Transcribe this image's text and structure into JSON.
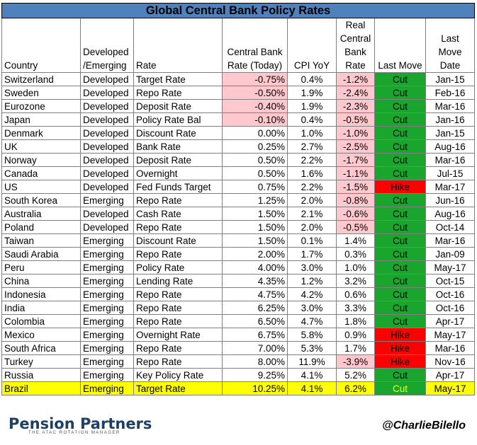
{
  "title": "Global Central Bank Policy Rates",
  "headers": {
    "country": "Country",
    "dev": "Developed /Emerging",
    "rate": "Rate",
    "cb": "Central Bank Rate (Today)",
    "cpi": "CPI YoY",
    "real": "Real Central Bank Rate",
    "move": "Last Move",
    "date": "Last Move Date"
  },
  "rows": [
    {
      "country": "Switzerland",
      "dev": "Developed",
      "rate": "Target Rate",
      "cb": "-0.75%",
      "cpi": "0.4%",
      "real": "-1.2%",
      "move": "Cut",
      "date": "Jan-15"
    },
    {
      "country": "Sweden",
      "dev": "Developed",
      "rate": "Repo Rate",
      "cb": "-0.50%",
      "cpi": "1.9%",
      "real": "-2.4%",
      "move": "Cut",
      "date": "Feb-16"
    },
    {
      "country": "Eurozone",
      "dev": "Developed",
      "rate": "Deposit Rate",
      "cb": "-0.40%",
      "cpi": "1.9%",
      "real": "-2.3%",
      "move": "Cut",
      "date": "Mar-16"
    },
    {
      "country": "Japan",
      "dev": "Developed",
      "rate": "Policy Rate Bal",
      "cb": "-0.10%",
      "cpi": "0.4%",
      "real": "-0.5%",
      "move": "Cut",
      "date": "Jan-16"
    },
    {
      "country": "Denmark",
      "dev": "Developed",
      "rate": "Discount Rate",
      "cb": "0.00%",
      "cpi": "1.0%",
      "real": "-1.0%",
      "move": "Cut",
      "date": "Jan-15"
    },
    {
      "country": "UK",
      "dev": "Developed",
      "rate": "Bank Rate",
      "cb": "0.25%",
      "cpi": "2.7%",
      "real": "-2.5%",
      "move": "Cut",
      "date": "Aug-16"
    },
    {
      "country": "Norway",
      "dev": "Developed",
      "rate": "Deposit Rate",
      "cb": "0.50%",
      "cpi": "2.2%",
      "real": "-1.7%",
      "move": "Cut",
      "date": "Mar-16"
    },
    {
      "country": "Canada",
      "dev": "Developed",
      "rate": "Overnight",
      "cb": "0.50%",
      "cpi": "1.6%",
      "real": "-1.1%",
      "move": "Cut",
      "date": "Jul-15"
    },
    {
      "country": "US",
      "dev": "Developed",
      "rate": "Fed Funds Target",
      "cb": "0.75%",
      "cpi": "2.2%",
      "real": "-1.5%",
      "move": "Hike",
      "date": "Mar-17"
    },
    {
      "country": "South Korea",
      "dev": "Emerging",
      "rate": "Repo Rate",
      "cb": "1.25%",
      "cpi": "2.0%",
      "real": "-0.8%",
      "move": "Cut",
      "date": "Jun-16"
    },
    {
      "country": "Australia",
      "dev": "Developed",
      "rate": "Cash Rate",
      "cb": "1.50%",
      "cpi": "2.1%",
      "real": "-0.6%",
      "move": "Cut",
      "date": "Aug-16"
    },
    {
      "country": "Poland",
      "dev": "Developed",
      "rate": "Repo Rate",
      "cb": "1.50%",
      "cpi": "2.0%",
      "real": "-0.5%",
      "move": "Cut",
      "date": "Oct-14"
    },
    {
      "country": "Taiwan",
      "dev": "Emerging",
      "rate": "Discount Rate",
      "cb": "1.50%",
      "cpi": "0.1%",
      "real": "1.4%",
      "move": "Cut",
      "date": "Mar-16"
    },
    {
      "country": "Saudi Arabia",
      "dev": "Emerging",
      "rate": "Repo Rate",
      "cb": "2.00%",
      "cpi": "1.7%",
      "real": "0.3%",
      "move": "Cut",
      "date": "Jan-09"
    },
    {
      "country": "Peru",
      "dev": "Emerging",
      "rate": "Policy Rate",
      "cb": "4.00%",
      "cpi": "3.0%",
      "real": "1.0%",
      "move": "Cut",
      "date": "May-17"
    },
    {
      "country": "China",
      "dev": "Emerging",
      "rate": "Lending Rate",
      "cb": "4.35%",
      "cpi": "1.2%",
      "real": "3.2%",
      "move": "Cut",
      "date": "Oct-15"
    },
    {
      "country": "Indonesia",
      "dev": "Emerging",
      "rate": "Repo Rate",
      "cb": "4.75%",
      "cpi": "4.2%",
      "real": "0.6%",
      "move": "Cut",
      "date": "Oct-16"
    },
    {
      "country": "India",
      "dev": "Emerging",
      "rate": "Repo Rate",
      "cb": "6.25%",
      "cpi": "3.0%",
      "real": "3.3%",
      "move": "Cut",
      "date": "Oct-16"
    },
    {
      "country": "Colombia",
      "dev": "Emerging",
      "rate": "Repo Rate",
      "cb": "6.50%",
      "cpi": "4.7%",
      "real": "1.8%",
      "move": "Cut",
      "date": "Apr-17"
    },
    {
      "country": "Mexico",
      "dev": "Emerging",
      "rate": "Overnight Rate",
      "cb": "6.75%",
      "cpi": "5.8%",
      "real": "0.9%",
      "move": "Hike",
      "date": "May-17"
    },
    {
      "country": "South Africa",
      "dev": "Emerging",
      "rate": "Repo Rate",
      "cb": "7.00%",
      "cpi": "5.3%",
      "real": "1.7%",
      "move": "Hike",
      "date": "Mar-16"
    },
    {
      "country": "Turkey",
      "dev": "Emerging",
      "rate": "Repo Rate",
      "cb": "8.00%",
      "cpi": "11.9%",
      "real": "-3.9%",
      "move": "Hike",
      "date": "Nov-16"
    },
    {
      "country": "Russia",
      "dev": "Emerging",
      "rate": "Key Policy Rate",
      "cb": "9.25%",
      "cpi": "4.1%",
      "real": "5.2%",
      "move": "Cut",
      "date": "Apr-17"
    },
    {
      "country": "Brazil",
      "dev": "Emerging",
      "rate": "Target Rate",
      "cb": "10.25%",
      "cpi": "4.1%",
      "real": "6.2%",
      "move": "Cut",
      "date": "May-17",
      "highlight": true
    }
  ],
  "footer": {
    "logo": "Pension Partners",
    "tagline": "THE ATAC ROTATION MANAGER",
    "handle": "@CharlieBilello"
  },
  "colors": {
    "title_bg": "#4f81bd",
    "negative_bg": "#ffc7ce",
    "cut_bg": "#19a52e",
    "hike_bg": "#ff0000",
    "highlight_bg": "#ffff00"
  },
  "chart_data": {
    "type": "table",
    "title": "Global Central Bank Policy Rates",
    "columns": [
      "Country",
      "Developed /Emerging",
      "Rate",
      "Central Bank Rate (Today)",
      "CPI YoY",
      "Real Central Bank Rate",
      "Last Move",
      "Last Move Date"
    ],
    "rows": [
      [
        "Switzerland",
        "Developed",
        "Target Rate",
        "-0.75%",
        "0.4%",
        "-1.2%",
        "Cut",
        "Jan-15"
      ],
      [
        "Sweden",
        "Developed",
        "Repo Rate",
        "-0.50%",
        "1.9%",
        "-2.4%",
        "Cut",
        "Feb-16"
      ],
      [
        "Eurozone",
        "Developed",
        "Deposit Rate",
        "-0.40%",
        "1.9%",
        "-2.3%",
        "Cut",
        "Mar-16"
      ],
      [
        "Japan",
        "Developed",
        "Policy Rate Bal",
        "-0.10%",
        "0.4%",
        "-0.5%",
        "Cut",
        "Jan-16"
      ],
      [
        "Denmark",
        "Developed",
        "Discount Rate",
        "0.00%",
        "1.0%",
        "-1.0%",
        "Cut",
        "Jan-15"
      ],
      [
        "UK",
        "Developed",
        "Bank Rate",
        "0.25%",
        "2.7%",
        "-2.5%",
        "Cut",
        "Aug-16"
      ],
      [
        "Norway",
        "Developed",
        "Deposit Rate",
        "0.50%",
        "2.2%",
        "-1.7%",
        "Cut",
        "Mar-16"
      ],
      [
        "Canada",
        "Developed",
        "Overnight",
        "0.50%",
        "1.6%",
        "-1.1%",
        "Cut",
        "Jul-15"
      ],
      [
        "US",
        "Developed",
        "Fed Funds Target",
        "0.75%",
        "2.2%",
        "-1.5%",
        "Hike",
        "Mar-17"
      ],
      [
        "South Korea",
        "Emerging",
        "Repo Rate",
        "1.25%",
        "2.0%",
        "-0.8%",
        "Cut",
        "Jun-16"
      ],
      [
        "Australia",
        "Developed",
        "Cash Rate",
        "1.50%",
        "2.1%",
        "-0.6%",
        "Cut",
        "Aug-16"
      ],
      [
        "Poland",
        "Developed",
        "Repo Rate",
        "1.50%",
        "2.0%",
        "-0.5%",
        "Cut",
        "Oct-14"
      ],
      [
        "Taiwan",
        "Emerging",
        "Discount Rate",
        "1.50%",
        "0.1%",
        "1.4%",
        "Cut",
        "Mar-16"
      ],
      [
        "Saudi Arabia",
        "Emerging",
        "Repo Rate",
        "2.00%",
        "1.7%",
        "0.3%",
        "Cut",
        "Jan-09"
      ],
      [
        "Peru",
        "Emerging",
        "Policy Rate",
        "4.00%",
        "3.0%",
        "1.0%",
        "Cut",
        "May-17"
      ],
      [
        "China",
        "Emerging",
        "Lending Rate",
        "4.35%",
        "1.2%",
        "3.2%",
        "Cut",
        "Oct-15"
      ],
      [
        "Indonesia",
        "Emerging",
        "Repo Rate",
        "4.75%",
        "4.2%",
        "0.6%",
        "Cut",
        "Oct-16"
      ],
      [
        "India",
        "Emerging",
        "Repo Rate",
        "6.25%",
        "3.0%",
        "3.3%",
        "Cut",
        "Oct-16"
      ],
      [
        "Colombia",
        "Emerging",
        "Repo Rate",
        "6.50%",
        "4.7%",
        "1.8%",
        "Cut",
        "Apr-17"
      ],
      [
        "Mexico",
        "Emerging",
        "Overnight Rate",
        "6.75%",
        "5.8%",
        "0.9%",
        "Hike",
        "May-17"
      ],
      [
        "South Africa",
        "Emerging",
        "Repo Rate",
        "7.00%",
        "5.3%",
        "1.7%",
        "Hike",
        "Mar-16"
      ],
      [
        "Turkey",
        "Emerging",
        "Repo Rate",
        "8.00%",
        "11.9%",
        "-3.9%",
        "Hike",
        "Nov-16"
      ],
      [
        "Russia",
        "Emerging",
        "Key Policy Rate",
        "9.25%",
        "4.1%",
        "5.2%",
        "Cut",
        "Apr-17"
      ],
      [
        "Brazil",
        "Emerging",
        "Target Rate",
        "10.25%",
        "4.1%",
        "6.2%",
        "Cut",
        "May-17"
      ]
    ]
  }
}
